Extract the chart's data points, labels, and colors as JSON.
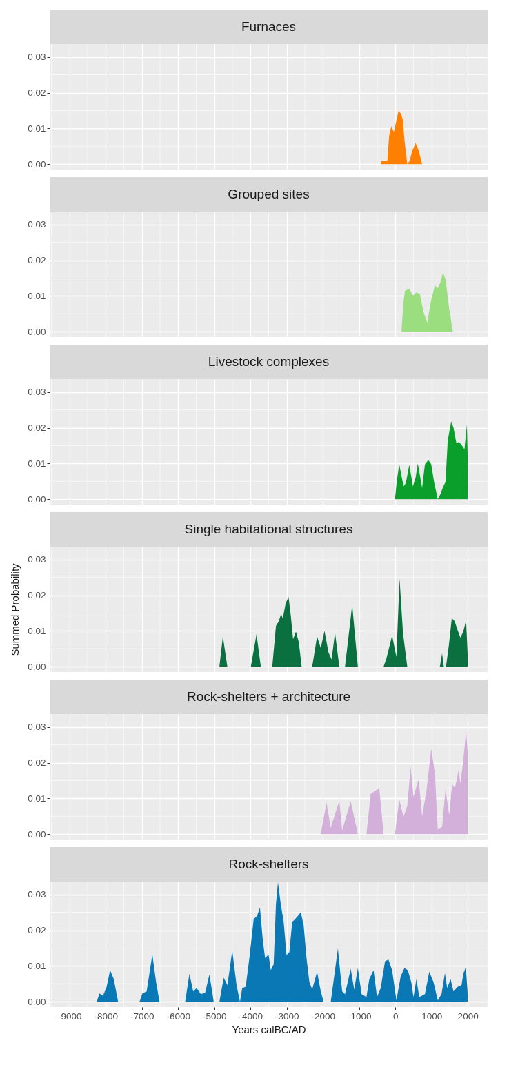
{
  "chart_data": [
    {
      "type": "area",
      "title": "Furnaces",
      "color": "#ff7f00",
      "tick_labels": "y",
      "grid": true,
      "xlim": [
        -9550,
        2550
      ],
      "ylim": [
        -0.0015,
        0.0336
      ],
      "xticks": [
        -9000,
        -8000,
        -7000,
        -6000,
        -5000,
        -4000,
        -3000,
        -2000,
        -1000,
        0,
        1000,
        2000
      ],
      "yticks": [
        {
          "value": 0,
          "label": "0.00"
        },
        {
          "value": 0.01,
          "label": "0.01"
        },
        {
          "value": 0.02,
          "label": "0.02"
        },
        {
          "value": 0.03,
          "label": "0.03"
        }
      ],
      "x": [
        -9000,
        -404,
        -390,
        -220,
        -170,
        -112,
        -40,
        93,
        160,
        203,
        260,
        330,
        400,
        460,
        560,
        640,
        740,
        2000
      ],
      "values": [
        0,
        0,
        0.001,
        0.001,
        0.008,
        0.0106,
        0.009,
        0.0151,
        0.014,
        0.0126,
        0.006,
        0,
        0.001,
        0.0035,
        0.0059,
        0.004,
        0,
        0
      ]
    },
    {
      "type": "area",
      "title": "Grouped sites",
      "color": "#9ade7f",
      "tick_labels": "y",
      "grid": true,
      "xlim": [
        -9550,
        2550
      ],
      "ylim": [
        -0.0015,
        0.0336
      ],
      "xticks": [
        -9000,
        -8000,
        -7000,
        -6000,
        -5000,
        -4000,
        -3000,
        -2000,
        -1000,
        0,
        1000,
        2000
      ],
      "yticks": [
        {
          "value": 0,
          "label": "0.00"
        },
        {
          "value": 0.01,
          "label": "0.01"
        },
        {
          "value": 0.02,
          "label": "0.02"
        },
        {
          "value": 0.03,
          "label": "0.03"
        }
      ],
      "x": [
        -9000,
        170,
        220,
        267,
        385,
        487,
        582,
        677,
        779,
        881,
        992,
        1094,
        1173,
        1252,
        1315,
        1386,
        1489,
        1544,
        1590,
        2000
      ],
      "values": [
        0,
        0,
        0.008,
        0.0114,
        0.012,
        0.0101,
        0.011,
        0.0106,
        0.0055,
        0.0025,
        0.0089,
        0.0129,
        0.0122,
        0.014,
        0.0166,
        0.0147,
        0.0063,
        0.003,
        0,
        0
      ]
    },
    {
      "type": "area",
      "title": "Livestock complexes",
      "color": "#0a9e2a",
      "tick_labels": "y",
      "grid": true,
      "xlim": [
        -9550,
        2550
      ],
      "ylim": [
        -0.0015,
        0.0336
      ],
      "xticks": [
        -9000,
        -8000,
        -7000,
        -6000,
        -5000,
        -4000,
        -3000,
        -2000,
        -1000,
        0,
        1000,
        2000
      ],
      "yticks": [
        {
          "value": 0,
          "label": "0.00"
        },
        {
          "value": 0.01,
          "label": "0.01"
        },
        {
          "value": 0.02,
          "label": "0.02"
        },
        {
          "value": 0.03,
          "label": "0.03"
        }
      ],
      "x": [
        -9000,
        -10,
        40,
        108,
        227,
        290,
        385,
        487,
        560,
        621,
        740,
        818,
        913,
        992,
        1071,
        1173,
        1250,
        1308,
        1386,
        1449,
        1544,
        1607,
        1686,
        1765,
        1844,
        1910,
        1978,
        2000
      ],
      "values": [
        0,
        0,
        0.005,
        0.0098,
        0.0036,
        0.0045,
        0.0096,
        0.0036,
        0.006,
        0.01,
        0.0032,
        0.0098,
        0.011,
        0.0098,
        0.0048,
        0,
        0.0015,
        0.0032,
        0.0048,
        0.0165,
        0.0218,
        0.02,
        0.0157,
        0.016,
        0.015,
        0.014,
        0.0208,
        0.0115
      ]
    },
    {
      "type": "area",
      "title": "Single habitational structures",
      "ylabel": "Summed Probability",
      "color": "#0b7040",
      "tick_labels": "y",
      "grid": true,
      "xlim": [
        -9550,
        2550
      ],
      "ylim": [
        -0.0015,
        0.0336
      ],
      "xticks": [
        -9000,
        -8000,
        -7000,
        -6000,
        -5000,
        -4000,
        -3000,
        -2000,
        -1000,
        0,
        1000,
        2000
      ],
      "yticks": [
        {
          "value": 0,
          "label": "0.00"
        },
        {
          "value": 0.01,
          "label": "0.01"
        },
        {
          "value": 0.02,
          "label": "0.02"
        },
        {
          "value": 0.03,
          "label": "0.03"
        }
      ],
      "x": [
        -9000,
        -4860,
        -4765,
        -4640,
        -3992,
        -3834,
        -3716,
        -3400,
        -3298,
        -3219,
        -3156,
        -3109,
        -3030,
        -2951,
        -2888,
        -2825,
        -2746,
        -2667,
        -2588,
        -2297,
        -2162,
        -2060,
        -1957,
        -1847,
        -1760,
        -1666,
        -1548,
        -1390,
        -1192,
        -1035,
        -325,
        -246,
        -89,
        30,
        117,
        212,
        330,
        1230,
        1292,
        1340,
        1400,
        1480,
        1560,
        1639,
        1718,
        1797,
        1876,
        1955,
        2000
      ],
      "values": [
        0,
        0,
        0.0085,
        0,
        0,
        0.0091,
        0,
        0,
        0.0114,
        0.0127,
        0.0148,
        0.0135,
        0.0177,
        0.0195,
        0.0143,
        0.0077,
        0.0098,
        0.0069,
        0,
        0,
        0.0085,
        0.0052,
        0.01,
        0.004,
        0.002,
        0.0096,
        0,
        0,
        0.0173,
        0,
        0,
        0.0023,
        0.0087,
        0.0027,
        0.0246,
        0.0094,
        0,
        0,
        0.0037,
        0,
        0,
        0.006,
        0.0136,
        0.0127,
        0.0103,
        0.0081,
        0.0098,
        0.0129,
        0.003
      ]
    },
    {
      "type": "area",
      "title": "Rock-shelters + architecture",
      "color": "#d3b0da",
      "tick_labels": "y",
      "grid": true,
      "xlim": [
        -9550,
        2550
      ],
      "ylim": [
        -0.0015,
        0.0336
      ],
      "xticks": [
        -9000,
        -8000,
        -7000,
        -6000,
        -5000,
        -4000,
        -3000,
        -2000,
        -1000,
        0,
        1000,
        2000
      ],
      "yticks": [
        {
          "value": 0,
          "label": "0.00"
        },
        {
          "value": 0.01,
          "label": "0.01"
        },
        {
          "value": 0.02,
          "label": "0.02"
        },
        {
          "value": 0.03,
          "label": "0.03"
        }
      ],
      "x": [
        -9000,
        -2060,
        -1902,
        -1784,
        -1547,
        -1469,
        -1232,
        -1035,
        -798,
        -680,
        -561,
        -443,
        -325,
        -10,
        108,
        227,
        330,
        424,
        503,
        645,
        740,
        858,
        992,
        1094,
        1173,
        1292,
        1386,
        1489,
        1568,
        1647,
        1749,
        1797,
        1876,
        1955,
        2000
      ],
      "values": [
        0,
        0,
        0.0088,
        0.0018,
        0.0094,
        0.001,
        0.0092,
        0,
        0,
        0.0113,
        0.0121,
        0.0129,
        0,
        0,
        0.0098,
        0.0048,
        0.008,
        0.0188,
        0.0104,
        0.0154,
        0.005,
        0.012,
        0.0239,
        0.017,
        0.0014,
        0.002,
        0.0125,
        0.0054,
        0.0139,
        0.0129,
        0.0179,
        0.0142,
        0.0204,
        0.029,
        0.023
      ]
    },
    {
      "type": "area",
      "title": "Rock-shelters",
      "xlabel": "Years calBC/AD",
      "color": "#0a78b4",
      "grid": true,
      "xlim": [
        -9550,
        2550
      ],
      "ylim": [
        -0.0015,
        0.0336
      ],
      "xticks": [
        -9000,
        -8000,
        -7000,
        -6000,
        -5000,
        -4000,
        -3000,
        -2000,
        -1000,
        0,
        1000,
        2000
      ],
      "yticks": [
        {
          "value": 0,
          "label": "0.00"
        },
        {
          "value": 0.01,
          "label": "0.01"
        },
        {
          "value": 0.02,
          "label": "0.02"
        },
        {
          "value": 0.03,
          "label": "0.03"
        }
      ],
      "x": [
        -9000,
        -8251,
        -8172,
        -8077,
        -7980,
        -7880,
        -7778,
        -7659,
        -7541,
        -7068,
        -6989,
        -6870,
        -6713,
        -6610,
        -6516,
        -5806,
        -5688,
        -5585,
        -5490,
        -5372,
        -5254,
        -5136,
        -5017,
        -4860,
        -4741,
        -4639,
        -4505,
        -4386,
        -4292,
        -4229,
        -4134,
        -4032,
        -3913,
        -3819,
        -3740,
        -3661,
        -3598,
        -3503,
        -3440,
        -3361,
        -3298,
        -3243,
        -3164,
        -3085,
        -3006,
        -2927,
        -2849,
        -2770,
        -2691,
        -2612,
        -2533,
        -2454,
        -2375,
        -2297,
        -2162,
        -2060,
        -1981,
        -1784,
        -1666,
        -1587,
        -1469,
        -1390,
        -1232,
        -1137,
        -1035,
        -932,
        -798,
        -719,
        -601,
        -506,
        -404,
        -285,
        -191,
        -89,
        30,
        148,
        250,
        345,
        440,
        503,
        582,
        661,
        818,
        937,
        1055,
        1173,
        1276,
        1370,
        1433,
        1528,
        1607,
        1726,
        1828,
        1884,
        1947,
        2000
      ],
      "values": [
        0,
        0,
        0.0023,
        0.0017,
        0.004,
        0.0088,
        0.0063,
        0,
        0,
        0,
        0.0023,
        0.0029,
        0.0132,
        0.0055,
        0,
        0,
        0.0078,
        0.0029,
        0.0038,
        0.0021,
        0.0025,
        0.0076,
        0,
        0,
        0.0067,
        0.0046,
        0.0143,
        0.0046,
        0,
        0.0038,
        0.0042,
        0.0122,
        0.0231,
        0.024,
        0.0263,
        0.0172,
        0.0122,
        0.0132,
        0.0088,
        0.0105,
        0.0273,
        0.0334,
        0.0273,
        0.0223,
        0.013,
        0.0139,
        0.0223,
        0.0231,
        0.024,
        0.025,
        0.0214,
        0.0122,
        0.0055,
        0.0034,
        0.0084,
        0.0029,
        0,
        0,
        0.0088,
        0.0149,
        0.0029,
        0.0021,
        0.0092,
        0.0034,
        0.0094,
        0.0021,
        0.0013,
        0.0063,
        0.0088,
        0.0013,
        0.0038,
        0.0113,
        0.0118,
        0.0088,
        0.0004,
        0.0071,
        0.0094,
        0.0088,
        0.0055,
        0.0013,
        0.0063,
        0.0013,
        0.0021,
        0.0084,
        0.0055,
        0.0004,
        0.0021,
        0.008,
        0.0038,
        0.0063,
        0.0029,
        0.0042,
        0.0046,
        0.008,
        0.0097,
        0.002
      ]
    }
  ]
}
